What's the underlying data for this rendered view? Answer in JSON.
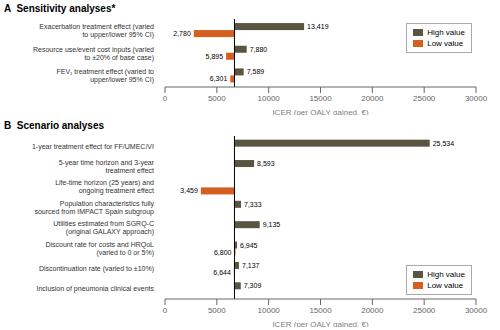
{
  "chart_data": [
    {
      "type": "bar",
      "orientation": "horizontal",
      "title": "A  Sensitivity analyses*",
      "categories": [
        "FEV₁ treatment effect (varied to upper/lower 95% CI)",
        "Resource use/event cost inputs (varied to ±20% of base case)",
        "Exacerbation treatment effect (varied to upper/lower 95% CI)"
      ],
      "series": [
        {
          "name": "High value",
          "color": "#5a5541",
          "values": [
            7589,
            7880,
            13419
          ],
          "value_labels": [
            "7,589",
            "7,880",
            "13,419"
          ]
        },
        {
          "name": "Low value",
          "color": "#d45f1e",
          "values": [
            6301,
            5895,
            2780
          ],
          "value_labels": [
            "6,301",
            "5,895",
            "2,780"
          ]
        }
      ],
      "baseline": 6700,
      "xlabel": "ICER (per QALY gained, €)",
      "xlim": [
        0,
        30000
      ],
      "xticks": [
        0,
        5000,
        10000,
        15000,
        20000,
        25000,
        30000
      ],
      "data_labels": true,
      "legend": "upper right",
      "grid": false
    },
    {
      "type": "bar",
      "orientation": "horizontal",
      "title": "B  Scenario analyses",
      "categories": [
        "Inclusion of pneumonia clinical events",
        "Discontinuation rate (varied to ±10%)",
        "Discount rate for costs and HRQoL (varied to 0 or 5%)",
        "Utilities estimated from SGRQ-C (original GALAXY approach)",
        "Population characteristics fully sourced from IMPACT Spain subgroup",
        "Life-time horizon (25 years) and ongoing treatment effect",
        "5-year time horizon and 3-year treatment effect",
        "1-year treatment effect for FF/UMEC/VI"
      ],
      "series": [
        {
          "name": "High value",
          "color": "#5a5541",
          "values": [
            7309,
            7137,
            6945,
            9135,
            7333,
            null,
            8593,
            25534
          ],
          "value_labels": [
            "7,309",
            "7,137",
            "6,945",
            "9,135",
            "7,333",
            null,
            "8,593",
            "25,534"
          ]
        },
        {
          "name": "Low value",
          "color": "#d45f1e",
          "values": [
            null,
            6644,
            6800,
            null,
            null,
            3459,
            null,
            null
          ],
          "value_labels": [
            null,
            "6,644",
            "6,800",
            null,
            null,
            "3,459",
            null,
            null
          ]
        }
      ],
      "baseline": 6700,
      "xlabel": "ICER (per QALY gained, €)",
      "xlim": [
        0,
        30000
      ],
      "xticks": [
        0,
        5000,
        10000,
        15000,
        20000,
        25000,
        30000
      ],
      "data_labels": true,
      "legend": "lower right",
      "grid": false
    }
  ]
}
